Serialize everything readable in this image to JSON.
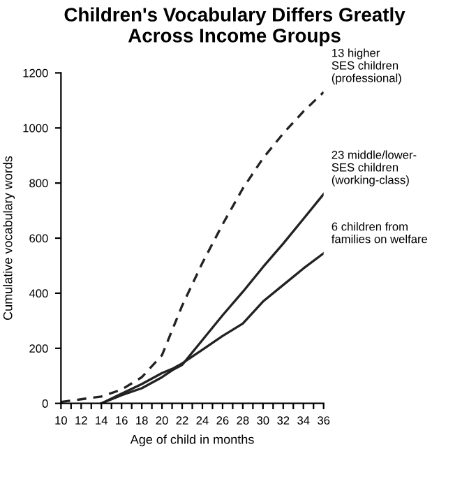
{
  "chart_data": {
    "type": "line",
    "title": "Children's Vocabulary Differs Greatly\nAcross Income Groups",
    "xlabel": "Age of child in months",
    "ylabel": "Cumulative vocabulary words",
    "series": [
      {
        "name": "13 higher\nSES children\n(professional)",
        "color": "#222222",
        "line_style": "dashed",
        "x": [
          10,
          12,
          14,
          16,
          18,
          20,
          22,
          24,
          26,
          28,
          30,
          32,
          34,
          36
        ],
        "values": [
          5,
          15,
          25,
          50,
          95,
          175,
          355,
          510,
          650,
          780,
          890,
          980,
          1060,
          1130
        ]
      },
      {
        "name": "23 middle/lower-\nSES children\n(working-class)",
        "color": "#222222",
        "line_style": "solid",
        "x": [
          14,
          16,
          18,
          20,
          21,
          22,
          24,
          26,
          28,
          30,
          32,
          34,
          36
        ],
        "values": [
          0,
          30,
          55,
          95,
          120,
          140,
          230,
          320,
          405,
          495,
          580,
          670,
          760
        ]
      },
      {
        "name": "6 children from\nfamilies on welfare",
        "color": "#222222",
        "line_style": "solid",
        "x": [
          14,
          16,
          18,
          20,
          21,
          22,
          24,
          26,
          28,
          30,
          32,
          34,
          36
        ],
        "values": [
          0,
          35,
          70,
          110,
          125,
          145,
          195,
          245,
          290,
          370,
          430,
          490,
          545
        ]
      }
    ],
    "xlim": [
      10,
      36
    ],
    "ylim": [
      0,
      1200
    ],
    "xticks": [
      10,
      {
        "value": 11,
        "label": null
      },
      12,
      {
        "value": 13,
        "label": null
      },
      14,
      {
        "value": 15,
        "label": null
      },
      16,
      {
        "value": 17,
        "label": null
      },
      18,
      {
        "value": 19,
        "label": null
      },
      20,
      {
        "value": 21,
        "label": null
      },
      22,
      {
        "value": 23,
        "label": null
      },
      24,
      {
        "value": 25,
        "label": null
      },
      26,
      {
        "value": 27,
        "label": null
      },
      28,
      {
        "value": 29,
        "label": null
      },
      30,
      {
        "value": 31,
        "label": null
      },
      32,
      {
        "value": 33,
        "label": null
      },
      34,
      {
        "value": 35,
        "label": null
      },
      36
    ],
    "yticks": [
      0,
      200,
      400,
      600,
      800,
      1000,
      1200
    ],
    "grid": false,
    "legend": false,
    "marker": "none"
  }
}
